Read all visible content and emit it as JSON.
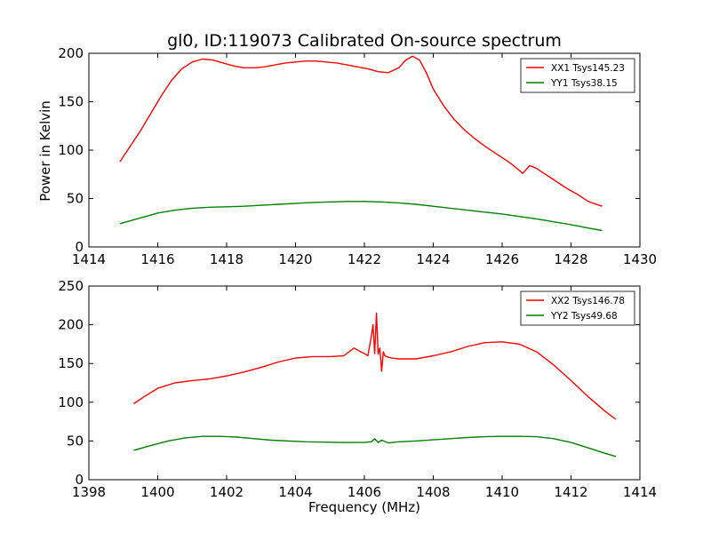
{
  "title": "gl0, ID:119073 Calibrated On-source spectrum",
  "ylabel": "Power in Kelvin",
  "xlabel": "Frequency (MHz)",
  "chart_data": [
    {
      "type": "line",
      "title": "gl0, ID:119073 Calibrated On-source spectrum",
      "xlabel": "",
      "ylabel": "Power in Kelvin",
      "xlim": [
        1414,
        1430
      ],
      "ylim": [
        0,
        200
      ],
      "xticks": [
        1414,
        1416,
        1418,
        1420,
        1422,
        1424,
        1426,
        1428,
        1430
      ],
      "yticks": [
        0,
        50,
        100,
        150,
        200
      ],
      "grid": false,
      "legend_position": "top-right",
      "series": [
        {
          "name": "XX1 Tsys145.23",
          "color": "#ff0000",
          "x": [
            1414.9,
            1415.2,
            1415.5,
            1415.8,
            1416.1,
            1416.4,
            1416.7,
            1417.0,
            1417.3,
            1417.6,
            1417.9,
            1418.2,
            1418.5,
            1418.8,
            1419.1,
            1419.4,
            1419.7,
            1420.0,
            1420.3,
            1420.6,
            1420.9,
            1421.2,
            1421.5,
            1421.8,
            1422.1,
            1422.4,
            1422.7,
            1423.0,
            1423.2,
            1423.4,
            1423.6,
            1423.8,
            1424.0,
            1424.3,
            1424.6,
            1424.9,
            1425.2,
            1425.5,
            1425.8,
            1426.1,
            1426.3,
            1426.5,
            1426.6,
            1426.8,
            1427.0,
            1427.3,
            1427.6,
            1427.9,
            1428.2,
            1428.5,
            1428.9
          ],
          "y": [
            88,
            104,
            120,
            138,
            156,
            172,
            184,
            191,
            194,
            193,
            190,
            187,
            185,
            185,
            186,
            188,
            190,
            191,
            192,
            192,
            191,
            190,
            188,
            186,
            184,
            181,
            180,
            185,
            193,
            197,
            193,
            180,
            163,
            146,
            132,
            121,
            112,
            104,
            97,
            90,
            85,
            79,
            76,
            84,
            81,
            74,
            67,
            60,
            54,
            47,
            42
          ]
        },
        {
          "name": "YY1 Tsys38.15",
          "color": "#008000",
          "x": [
            1414.9,
            1415.5,
            1416.0,
            1416.5,
            1417.0,
            1417.5,
            1418.0,
            1418.5,
            1419.0,
            1419.5,
            1420.0,
            1420.5,
            1421.0,
            1421.5,
            1422.0,
            1422.5,
            1423.0,
            1423.5,
            1424.0,
            1424.5,
            1425.0,
            1425.5,
            1426.0,
            1426.5,
            1427.0,
            1427.5,
            1428.0,
            1428.5,
            1428.9
          ],
          "y": [
            24,
            30,
            35,
            38,
            40,
            41,
            41.5,
            42,
            43,
            44,
            45,
            46,
            46.5,
            47,
            47,
            46.5,
            45.5,
            44,
            42,
            40,
            38,
            36,
            34,
            31.5,
            29,
            26,
            23,
            19.5,
            17
          ]
        }
      ]
    },
    {
      "type": "line",
      "title": "",
      "xlabel": "Frequency (MHz)",
      "ylabel": "",
      "xlim": [
        1398,
        1414
      ],
      "ylim": [
        0,
        250
      ],
      "xticks": [
        1398,
        1400,
        1402,
        1404,
        1406,
        1408,
        1410,
        1412,
        1414
      ],
      "yticks": [
        0,
        50,
        100,
        150,
        200,
        250
      ],
      "grid": false,
      "legend_position": "top-right",
      "series": [
        {
          "name": "XX2 Tsys146.78",
          "color": "#ff0000",
          "x": [
            1399.3,
            1399.6,
            1400.0,
            1400.5,
            1401.0,
            1401.5,
            1402.0,
            1402.5,
            1403.0,
            1403.5,
            1404.0,
            1404.5,
            1405.0,
            1405.4,
            1405.7,
            1405.9,
            1406.0,
            1406.1,
            1406.2,
            1406.25,
            1406.3,
            1406.35,
            1406.4,
            1406.45,
            1406.5,
            1406.55,
            1406.6,
            1406.7,
            1406.8,
            1407.0,
            1407.5,
            1408.0,
            1408.5,
            1409.0,
            1409.5,
            1410.0,
            1410.5,
            1411.0,
            1411.5,
            1412.0,
            1412.5,
            1413.0,
            1413.3
          ],
          "y": [
            98,
            107,
            118,
            125,
            128,
            130,
            134,
            139,
            145,
            152,
            157,
            159,
            159,
            160,
            170,
            165,
            163,
            160,
            185,
            200,
            163,
            215,
            162,
            170,
            140,
            165,
            160,
            158,
            157,
            156,
            156,
            160,
            165,
            172,
            177,
            178,
            175,
            165,
            148,
            128,
            107,
            88,
            78
          ]
        },
        {
          "name": "YY2 Tsys49.68",
          "color": "#008000",
          "x": [
            1399.3,
            1399.8,
            1400.3,
            1400.8,
            1401.3,
            1401.8,
            1402.3,
            1402.8,
            1403.3,
            1403.8,
            1404.3,
            1404.8,
            1405.3,
            1405.8,
            1406.0,
            1406.2,
            1406.3,
            1406.4,
            1406.5,
            1406.7,
            1407.0,
            1407.5,
            1408.0,
            1408.5,
            1409.0,
            1409.5,
            1410.0,
            1410.5,
            1411.0,
            1411.5,
            1412.0,
            1412.5,
            1413.0,
            1413.3
          ],
          "y": [
            38,
            44,
            50,
            54,
            56,
            56,
            55,
            53,
            51,
            50,
            49,
            48.5,
            48,
            48,
            48,
            49,
            53,
            48,
            51,
            47.5,
            49,
            50,
            51.5,
            53,
            54.5,
            55.5,
            56,
            56,
            55.5,
            53,
            48,
            41,
            34,
            30
          ]
        }
      ]
    }
  ]
}
